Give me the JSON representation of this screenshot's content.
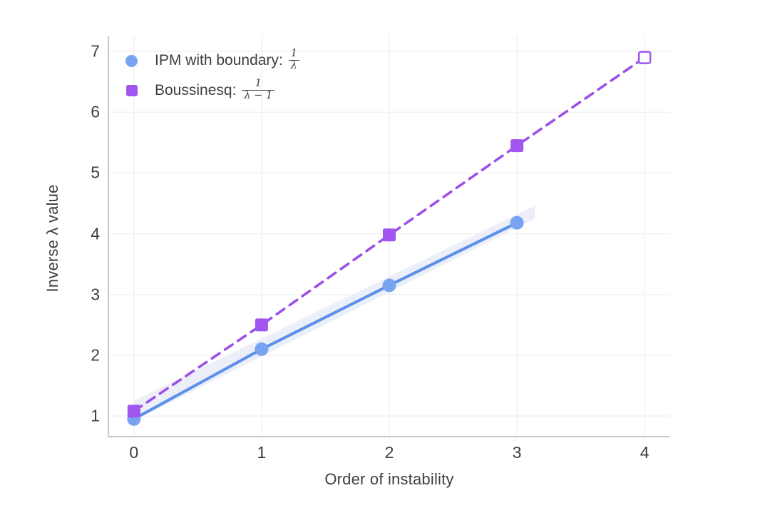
{
  "colors": {
    "background": "#ffffff",
    "axis_line": "#C7C9CC",
    "grid_line": "#F2F2F5",
    "text": "#3C4043",
    "ipm_marker": "#78A3F1",
    "ipm_line": "#5B8FEC",
    "ipm_band": "#E7EAF6",
    "boussinesq_marker": "#A156EF",
    "boussinesq_line": "#9C4DE8"
  },
  "chart_data": {
    "type": "line",
    "title": "",
    "xlabel": "Order of instability",
    "ylabel": "Inverse λ value",
    "x_ticks": [
      "0",
      "1",
      "2",
      "3",
      "4"
    ],
    "y_ticks": [
      "1",
      "2",
      "3",
      "4",
      "5",
      "6",
      "7"
    ],
    "xlim": [
      -0.2,
      4.2
    ],
    "ylim": [
      0.66,
      7.26
    ],
    "grid": true,
    "legend_position": "top-left",
    "series": [
      {
        "name": "IPM with boundary: 1/λ",
        "marker": "circle",
        "line_style": "solid",
        "marker_color": "#78A3F1",
        "line_color": "#5B8FEC",
        "x": [
          0,
          1,
          2,
          3
        ],
        "y": [
          0.95,
          2.1,
          3.15,
          4.18
        ],
        "band": {
          "x": [
            0,
            3.14
          ],
          "top": [
            1.25,
            4.46
          ],
          "bottom": [
            0.92,
            4.25
          ],
          "color": "#E7EAF6"
        }
      },
      {
        "name": "Boussinesq: 1/(λ−1)",
        "marker": "square",
        "line_style": "dashed",
        "marker_color": "#A156EF",
        "line_color": "#9C4DE8",
        "x": [
          0,
          1,
          2,
          3,
          4
        ],
        "y": [
          1.08,
          2.5,
          3.98,
          5.45,
          6.9
        ],
        "open_marker_x": [
          4
        ]
      }
    ],
    "legend": [
      {
        "label": "IPM with boundary:",
        "frac_num": "1",
        "frac_den": "λ",
        "marker": "circle",
        "color": "#78A3F1"
      },
      {
        "label": "Boussinesq:",
        "frac_num": "1",
        "frac_den": "λ − 1",
        "marker": "square",
        "color": "#A156EF"
      }
    ]
  }
}
